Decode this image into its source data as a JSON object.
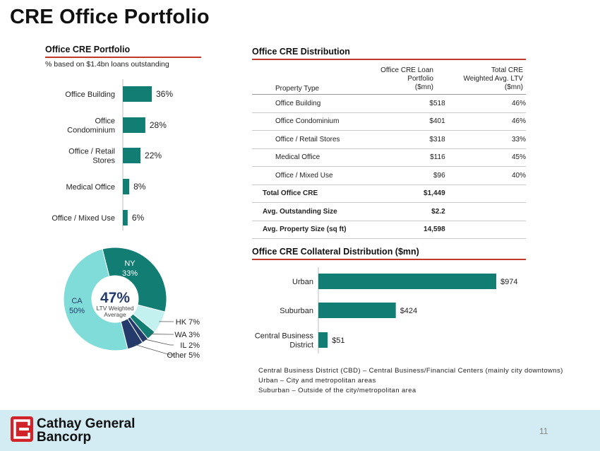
{
  "page": {
    "title": "CRE Office Portfolio",
    "page_number": "11"
  },
  "left_panel": {
    "title": "Office CRE Portfolio",
    "subtitle": "% based on $1.4bn loans outstanding",
    "categories": [
      "Office Building",
      "Office\nCondominium",
      "Office / Retail\nStores",
      "Medical Office",
      "Office / Mixed Use"
    ],
    "value_labels": [
      "36%",
      "28%",
      "22%",
      "8%",
      "6%"
    ]
  },
  "distribution": {
    "title": "Office CRE Distribution",
    "headers": {
      "property_type": "Property Type",
      "loan_portfolio": [
        "Office CRE Loan",
        "Portfolio",
        "($mn)"
      ],
      "ltv": [
        "Total CRE",
        "Weighted Avg. LTV",
        "($mn)"
      ]
    },
    "rows": [
      {
        "type": "Office Building",
        "loan": "$518",
        "ltv": "46%"
      },
      {
        "type": "Office Condominium",
        "loan": "$401",
        "ltv": "46%"
      },
      {
        "type": "Office / Retail Stores",
        "loan": "$318",
        "ltv": "33%"
      },
      {
        "type": "Medical Office",
        "loan": "$116",
        "ltv": "45%"
      },
      {
        "type": "Office / Mixed Use",
        "loan": "$96",
        "ltv": "40%"
      }
    ],
    "totals": [
      {
        "label": "Total Office CRE",
        "value": "$1,449"
      },
      {
        "label": "Avg. Outstanding Size",
        "value": "$2.2"
      },
      {
        "label": "Avg. Property Size (sq ft)",
        "value": "14,598"
      }
    ]
  },
  "donut": {
    "center_value": "47%",
    "center_label_1": "LTV Weighted",
    "center_label_2": "Average",
    "ny_label": "NY",
    "ny_value": "33%",
    "ca_label": "CA",
    "ca_value": "50%",
    "legend": [
      "HK 7%",
      "WA 3%",
      "IL 2%",
      "Other 5%"
    ]
  },
  "collateral": {
    "title": "Office CRE Collateral Distribution ($mn)",
    "categories": [
      "Urban",
      "Suburban",
      "Central Business\nDistrict"
    ],
    "value_labels": [
      "$974",
      "$424",
      "$51"
    ]
  },
  "footnotes": [
    "Central Business District (CBD) – Central Business/Financial Centers (mainly city downtowns)",
    "Urban – City and metropolitan areas",
    "Suburban – Outside of the city/metropolitan area"
  ],
  "logo": {
    "line1": "Cathay General",
    "line2": "Bancorp"
  },
  "colors": {
    "teal": "#127d73",
    "aqua": "#7fdcd8",
    "navy": "#233a6a",
    "light_aqua": "#c3f1ef",
    "accent": "#c0392b"
  },
  "chart_data": [
    {
      "type": "bar",
      "orientation": "horizontal",
      "title": "Office CRE Portfolio",
      "subtitle": "% based on $1.4bn loans outstanding",
      "categories": [
        "Office Building",
        "Office Condominium",
        "Office / Retail Stores",
        "Medical Office",
        "Office / Mixed Use"
      ],
      "values": [
        36,
        28,
        22,
        8,
        6
      ],
      "unit": "%"
    },
    {
      "type": "pie",
      "title": "LTV Weighted Average 47%",
      "categories": [
        "NY",
        "HK",
        "WA",
        "IL",
        "Other",
        "CA"
      ],
      "values": [
        33,
        7,
        3,
        2,
        5,
        50
      ],
      "unit": "%"
    },
    {
      "type": "bar",
      "orientation": "horizontal",
      "title": "Office CRE Collateral Distribution ($mn)",
      "categories": [
        "Urban",
        "Suburban",
        "Central Business District"
      ],
      "values": [
        974,
        424,
        51
      ],
      "unit": "$mn"
    }
  ]
}
